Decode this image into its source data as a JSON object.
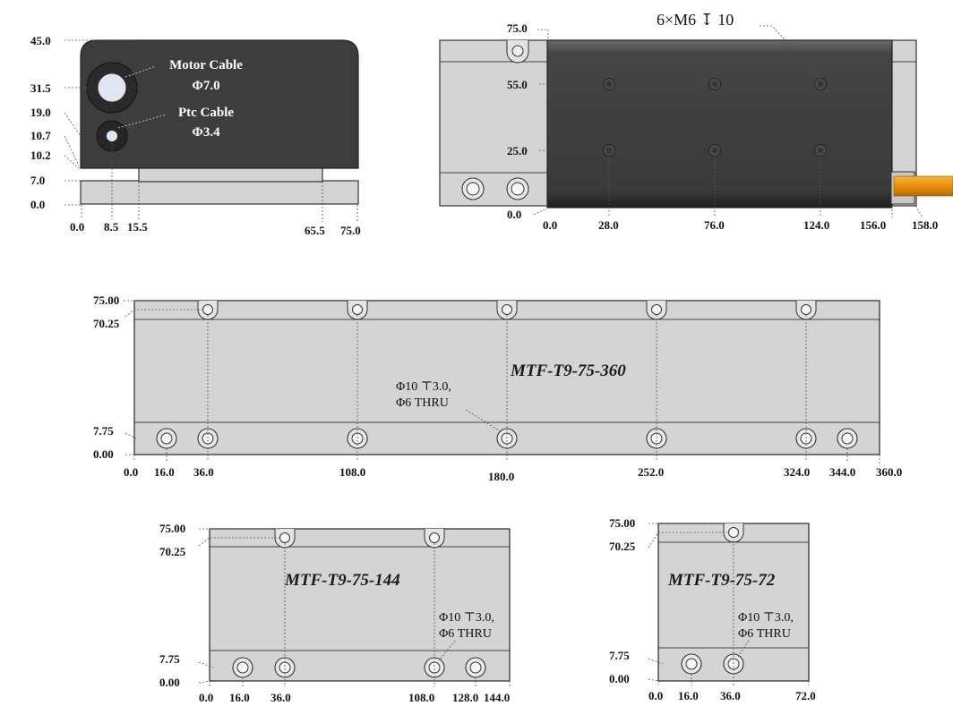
{
  "end_view": {
    "y_labels": [
      "45.0",
      "31.5",
      "19.0",
      "10.7",
      "10.2",
      "7.0",
      "0.0"
    ],
    "x_labels": [
      "0.0",
      "8.5",
      "15.5",
      "65.5",
      "75.0"
    ],
    "motor_cable_line1": "Motor Cable",
    "motor_cable_line2": "Φ7.0",
    "ptc_cable_line1": "Ptc Cable",
    "ptc_cable_line2": "Φ3.4"
  },
  "top_view": {
    "callout": "6×M6 ↧ 10",
    "y_labels": [
      "75.0",
      "55.0",
      "25.0",
      "0.0"
    ],
    "x_labels": [
      "0.0",
      "28.0",
      "76.0",
      "124.0",
      "156.0",
      "158.0"
    ],
    "colors": {
      "motor_body": "#3c3c3c",
      "cable": "#e8900e"
    }
  },
  "track_360": {
    "model": "MTF-T9-75-360",
    "hole_note_line1": "Φ10 ⊤3.0,",
    "hole_note_line2": "Φ6 THRU",
    "y_labels": [
      "75.00",
      "70.25",
      "7.75",
      "0.00"
    ],
    "x_labels": [
      "0.0",
      "16.0",
      "36.0",
      "108.0",
      "180.0",
      "252.0",
      "324.0",
      "344.0",
      "360.0"
    ]
  },
  "track_144": {
    "model": "MTF-T9-75-144",
    "hole_note_line1": "Φ10 ⊤3.0,",
    "hole_note_line2": "Φ6 THRU",
    "y_labels": [
      "75.00",
      "70.25",
      "7.75",
      "0.00"
    ],
    "x_labels": [
      "0.0",
      "16.0",
      "36.0",
      "108.0",
      "128.0",
      "144.0"
    ]
  },
  "track_72": {
    "model": "MTF-T9-75-72",
    "hole_note_line1": "Φ10 ⊤3.0,",
    "hole_note_line2": "Φ6 THRU",
    "y_labels": [
      "75.00",
      "70.25",
      "7.75",
      "0.00"
    ],
    "x_labels": [
      "0.0",
      "16.0",
      "36.0",
      "72.0"
    ]
  }
}
